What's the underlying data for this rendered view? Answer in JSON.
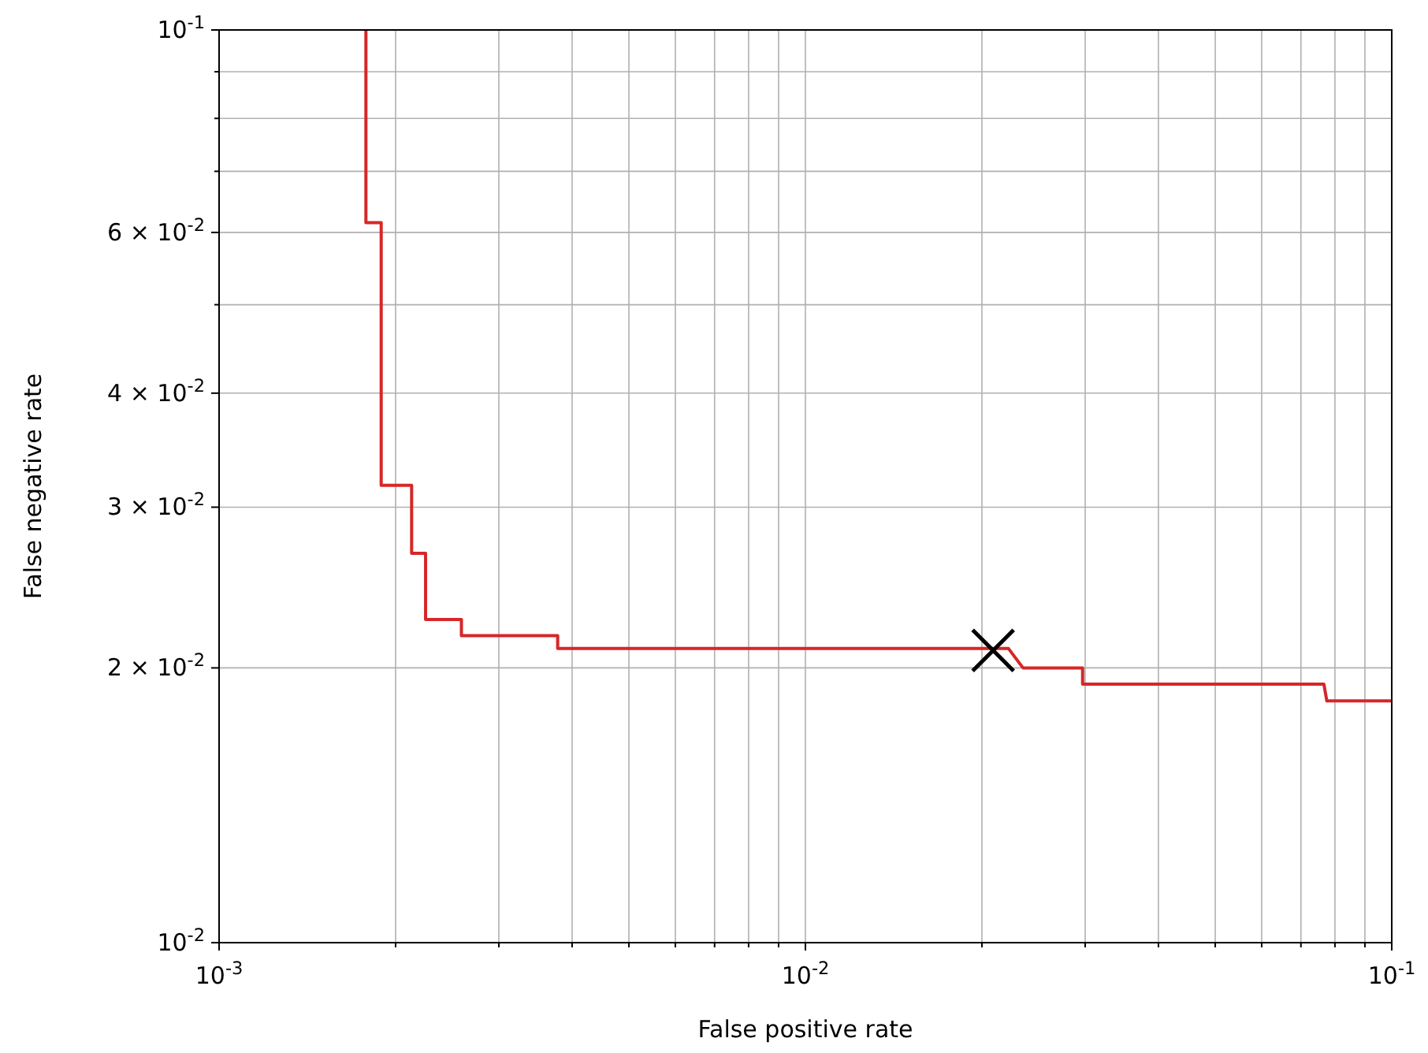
{
  "chart_data": {
    "type": "line",
    "xlabel": "False positive rate",
    "ylabel": "False negative rate",
    "log": "xy",
    "grid": true,
    "xlim": [
      0.001,
      0.1
    ],
    "ylim": [
      0.01,
      0.1
    ],
    "xticks": [
      {
        "value": 0.001,
        "label": "10$^{-3}$"
      },
      {
        "value": 0.002,
        "label": null
      },
      {
        "value": 0.003,
        "label": null
      },
      {
        "value": 0.004,
        "label": null
      },
      {
        "value": 0.005,
        "label": null
      },
      {
        "value": 0.006,
        "label": null
      },
      {
        "value": 0.007,
        "label": null
      },
      {
        "value": 0.008,
        "label": null
      },
      {
        "value": 0.009,
        "label": null
      },
      {
        "value": 0.01,
        "label": "10$^{-2}$"
      },
      {
        "value": 0.02,
        "label": null
      },
      {
        "value": 0.03,
        "label": null
      },
      {
        "value": 0.04,
        "label": null
      },
      {
        "value": 0.05,
        "label": null
      },
      {
        "value": 0.06,
        "label": null
      },
      {
        "value": 0.07,
        "label": null
      },
      {
        "value": 0.08,
        "label": null
      },
      {
        "value": 0.09,
        "label": null
      },
      {
        "value": 0.1,
        "label": "10$^{-1}$"
      }
    ],
    "yticks": [
      {
        "value": 0.01,
        "label": "10$^{-2}$"
      },
      {
        "value": 0.02,
        "label": "2 × 10$^{-2}$"
      },
      {
        "value": 0.03,
        "label": "3 × 10$^{-2}$"
      },
      {
        "value": 0.04,
        "label": "4 × 10$^{-2}$"
      },
      {
        "value": 0.05,
        "label": null
      },
      {
        "value": 0.06,
        "label": "6 × 10$^{-2}$"
      },
      {
        "value": 0.07,
        "label": null
      },
      {
        "value": 0.08,
        "label": null
      },
      {
        "value": 0.09,
        "label": null
      },
      {
        "value": 0.1,
        "label": "10$^{-1}$"
      }
    ],
    "series": [
      {
        "color": "#d62728",
        "x": [
          0.00178,
          0.00178,
          0.00189,
          0.00189,
          0.00213,
          0.00213,
          0.00225,
          0.00225,
          0.00259,
          0.00259,
          0.00378,
          0.00378,
          0.0222,
          0.0235,
          0.0297,
          0.0297,
          0.0766,
          0.0775,
          0.1
        ],
        "values": [
          0.1,
          0.0615,
          0.0615,
          0.0317,
          0.0317,
          0.0267,
          0.0267,
          0.0226,
          0.0226,
          0.0217,
          0.0217,
          0.021,
          0.021,
          0.02,
          0.02,
          0.0192,
          0.0192,
          0.0184,
          0.0184
        ]
      },
      {
        "type": "scatter",
        "color": "#000000",
        "marker": "cross",
        "x": [
          0.0209
        ],
        "values": [
          0.0209
        ]
      }
    ]
  }
}
